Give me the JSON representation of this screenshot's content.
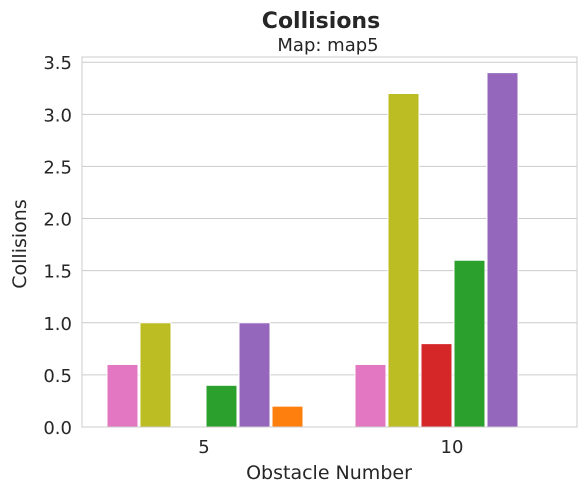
{
  "chart_data": {
    "type": "bar",
    "title": "Collisions",
    "subtitle": "Map: map5",
    "xlabel": "Obstacle Number",
    "ylabel": "Collisions",
    "categories": [
      "5",
      "10"
    ],
    "ylim": [
      0,
      3.55
    ],
    "yticks": [
      "0.0",
      "0.5",
      "1.0",
      "1.5",
      "2.0",
      "2.5",
      "3.0",
      "3.5"
    ],
    "grid": "horizontal",
    "series": [
      {
        "color": "#e377c2",
        "values": [
          0.6,
          0.6
        ]
      },
      {
        "color": "#bcbd22",
        "values": [
          1.0,
          3.2
        ]
      },
      {
        "color": "#d62728",
        "values": [
          0.0,
          0.8
        ]
      },
      {
        "color": "#2ca02c",
        "values": [
          0.4,
          1.6
        ]
      },
      {
        "color": "#9467bd",
        "values": [
          1.0,
          3.4
        ]
      },
      {
        "color": "#ff7f0e",
        "values": [
          0.2,
          0.0
        ]
      }
    ]
  }
}
